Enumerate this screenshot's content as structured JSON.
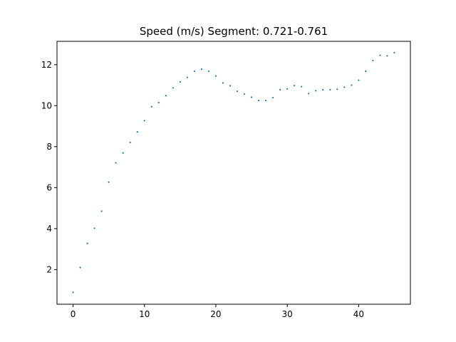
{
  "chart_data": {
    "type": "scatter",
    "title": "Speed (m/s) Segment: 0.721-0.761",
    "xlabel": "",
    "ylabel": "",
    "xlim": [
      -2.25,
      47.25
    ],
    "ylim": [
      0.31,
      13.14
    ],
    "x_ticks": [
      0,
      10,
      20,
      30,
      40
    ],
    "y_ticks": [
      2,
      4,
      6,
      8,
      10,
      12
    ],
    "grid": false,
    "legend": "none",
    "marker_color": "#1f77b4",
    "series": [
      {
        "x": [
          0,
          1,
          2,
          3,
          4,
          5,
          6,
          7,
          8,
          9,
          10,
          11,
          12,
          13,
          14,
          15,
          16,
          17,
          18,
          19,
          20,
          21,
          22,
          23,
          24,
          25,
          26,
          27,
          28,
          29,
          30,
          31,
          32,
          33,
          34,
          35,
          36,
          37,
          38,
          39,
          40,
          41,
          42,
          43,
          44,
          45
        ],
        "y": [
          0.89,
          2.1,
          3.28,
          4.02,
          4.85,
          6.27,
          7.21,
          7.69,
          8.21,
          8.72,
          9.27,
          9.95,
          10.15,
          10.49,
          10.87,
          11.16,
          11.38,
          11.68,
          11.78,
          11.68,
          11.45,
          11.11,
          10.97,
          10.7,
          10.57,
          10.41,
          10.25,
          10.25,
          10.39,
          10.78,
          10.82,
          10.98,
          10.93,
          10.59,
          10.73,
          10.78,
          10.78,
          10.8,
          10.9,
          11.0,
          11.24,
          11.68,
          12.2,
          12.46,
          12.43,
          12.59
        ]
      }
    ]
  }
}
